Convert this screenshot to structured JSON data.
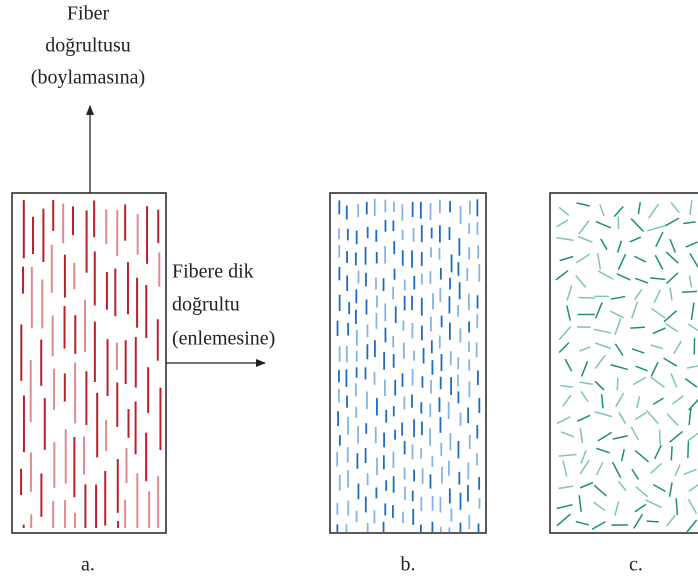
{
  "top_label": {
    "line1": "Fiber",
    "line2": "doğrultusu",
    "line3": "(boylamasına)"
  },
  "side_label": {
    "line1": "Fibere dik",
    "line2": "doğrultu",
    "line3": "(enlemesine)"
  },
  "panels": [
    {
      "label": "a."
    },
    {
      "label": "b."
    },
    {
      "label": "c."
    }
  ]
}
